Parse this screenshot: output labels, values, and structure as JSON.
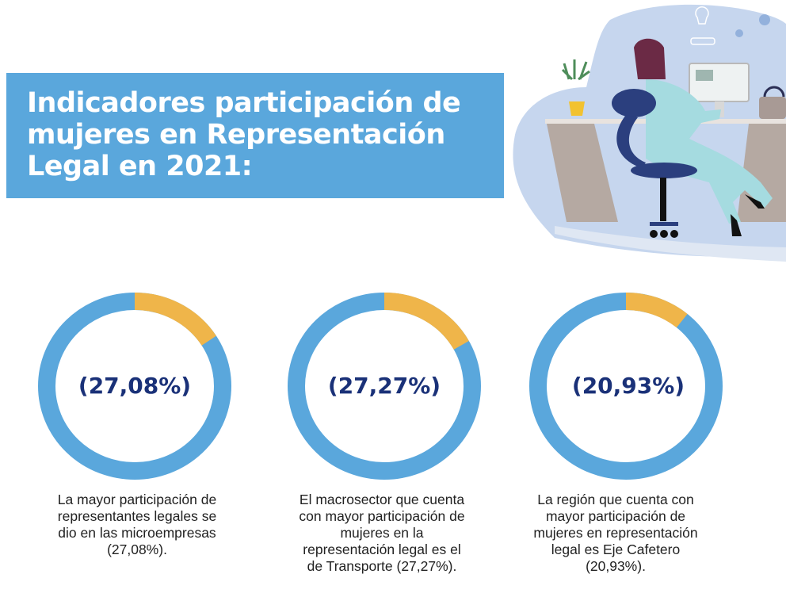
{
  "title": "Indicadores participación de\nmujeres en Representación\nLegal en 2021:",
  "colors": {
    "banner": "#5aa7dc",
    "ring": "#5aa7dc",
    "highlight": "#efb54a",
    "percent_text": "#1a3178"
  },
  "indicators": [
    {
      "percent": "(27,08%)",
      "highlight_fraction": 0.16,
      "caption": "La mayor participación de\nrepresentantes legales se\ndio en las microempresas\n(27,08%)."
    },
    {
      "percent": "(27,27%)",
      "highlight_fraction": 0.17,
      "caption": "El macrosector que cuenta\ncon mayor participación de\nmujeres en la\nrepresentación legal es el\nde Transporte (27,27%)."
    },
    {
      "percent": "(20,93%)",
      "highlight_fraction": 0.11,
      "caption": "La región que cuenta con\nmayor participación de\nmujeres en representación\nlegal es Eje Cafetero\n(20,93%)."
    }
  ]
}
